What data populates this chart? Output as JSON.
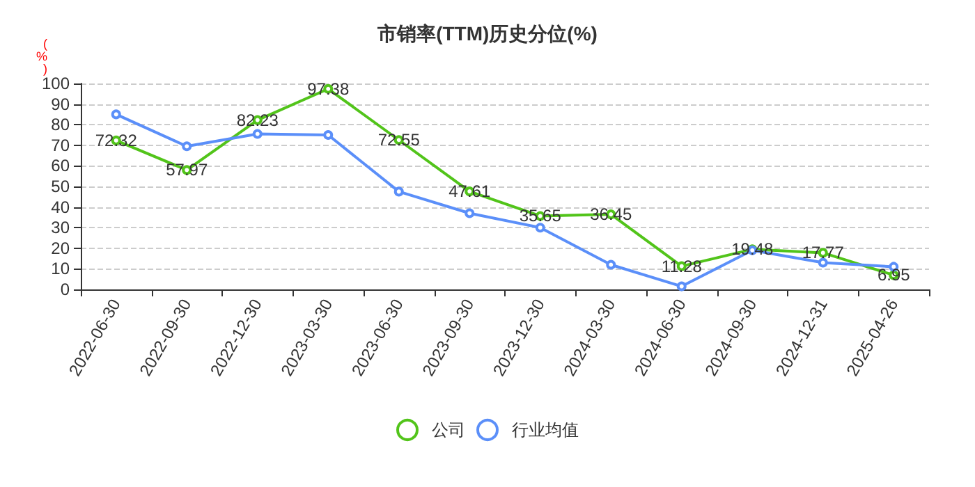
{
  "chart_data": {
    "type": "line",
    "title": "市销率(TTM)历史分位(%)",
    "ylabel": "(%)",
    "categories": [
      "2022-06-30",
      "2022-09-30",
      "2022-12-30",
      "2023-03-30",
      "2023-06-30",
      "2023-09-30",
      "2023-12-30",
      "2024-03-30",
      "2024-06-30",
      "2024-09-30",
      "2024-12-31",
      "2025-04-26"
    ],
    "series": [
      {
        "name": "公司",
        "color": "#52c41a",
        "values": [
          72.32,
          57.97,
          82.23,
          97.38,
          72.55,
          47.61,
          35.65,
          36.45,
          11.28,
          19.48,
          17.77,
          6.95
        ],
        "data_labels": true
      },
      {
        "name": "行业均值",
        "color": "#5b8ff9",
        "values": [
          85,
          69.5,
          75.5,
          75,
          47.5,
          37,
          30,
          12,
          1.5,
          19,
          13,
          11
        ]
      }
    ],
    "ylim": [
      0,
      100
    ],
    "yticks": [
      0,
      10,
      20,
      30,
      40,
      50,
      60,
      70,
      80,
      90,
      100
    ],
    "grid": "y",
    "legend": "bottom",
    "marker": "circle",
    "line_style": "solid"
  }
}
